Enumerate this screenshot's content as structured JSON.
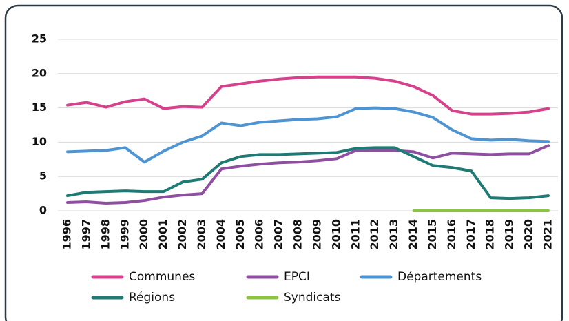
{
  "chart_data": {
    "type": "line",
    "x": [
      "1996",
      "1997",
      "1998",
      "1999",
      "2000",
      "2001",
      "2002",
      "2003",
      "2004",
      "2005",
      "2006",
      "2007",
      "2008",
      "2009",
      "2010",
      "2011",
      "2012",
      "2013",
      "2014",
      "2015",
      "2016",
      "2017",
      "2018",
      "2019",
      "2020",
      "2021"
    ],
    "ylim": [
      0,
      25
    ],
    "yticks": [
      0,
      5,
      10,
      15,
      20,
      25
    ],
    "grid": true,
    "series": [
      {
        "name": "Communes",
        "color": "#d6418c",
        "values": [
          15.4,
          15.8,
          15.1,
          15.9,
          16.3,
          14.9,
          15.2,
          15.1,
          18.1,
          18.5,
          18.9,
          19.2,
          19.4,
          19.5,
          19.5,
          19.5,
          19.3,
          18.9,
          18.1,
          16.8,
          14.6,
          14.1,
          14.1,
          14.2,
          14.4,
          14.9
        ]
      },
      {
        "name": "EPCI",
        "color": "#8e4fa0",
        "values": [
          1.2,
          1.3,
          1.1,
          1.2,
          1.5,
          2,
          2.3,
          2.5,
          6.1,
          6.5,
          6.8,
          7,
          7.1,
          7.3,
          7.6,
          8.8,
          8.8,
          8.8,
          8.6,
          7.7,
          8.4,
          8.3,
          8.2,
          8.3,
          8.3,
          9.5
        ]
      },
      {
        "name": "Départements",
        "color": "#4f94d2",
        "values": [
          8.6,
          8.7,
          8.8,
          9.2,
          7.1,
          8.7,
          10,
          10.9,
          12.8,
          12.4,
          12.9,
          13.1,
          13.3,
          13.4,
          13.7,
          14.9,
          15,
          14.9,
          14.4,
          13.6,
          11.8,
          10.5,
          10.3,
          10.4,
          10.2,
          10.1
        ]
      },
      {
        "name": "Régions",
        "color": "#1e7a73",
        "values": [
          2.2,
          2.7,
          2.8,
          2.9,
          2.8,
          2.8,
          4.2,
          4.6,
          7,
          7.9,
          8.2,
          8.2,
          8.3,
          8.4,
          8.5,
          9.1,
          9.2,
          9.2,
          7.9,
          6.6,
          6.3,
          5.8,
          1.9,
          1.8,
          1.9,
          2.2
        ]
      },
      {
        "name": "Syndicats",
        "color": "#8cc63f",
        "values": [
          null,
          null,
          null,
          null,
          null,
          null,
          null,
          null,
          null,
          null,
          null,
          null,
          null,
          null,
          null,
          null,
          null,
          null,
          0,
          0,
          0,
          0,
          0,
          0,
          0,
          0
        ]
      }
    ]
  }
}
